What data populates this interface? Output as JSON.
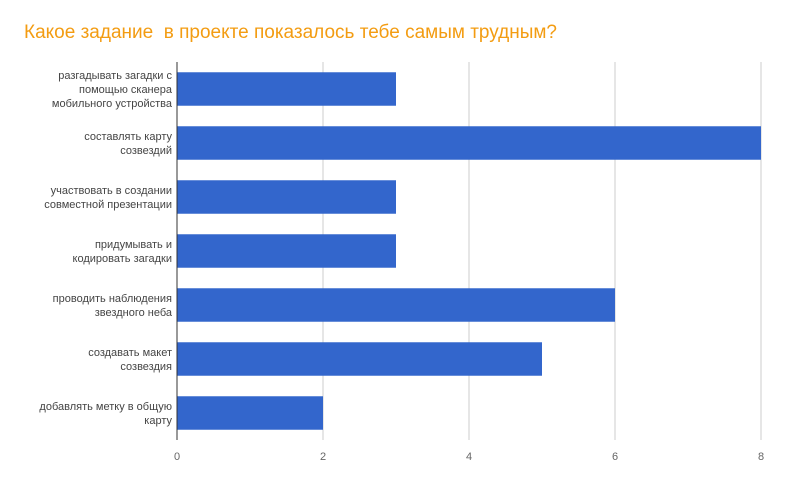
{
  "chart_data": {
    "type": "bar",
    "orientation": "horizontal",
    "title": "Какое задание  в проекте показалось тебе самым трудным?",
    "categories": [
      [
        "разгадывать загадки с",
        "помощью сканера",
        "мобильного устройства"
      ],
      [
        "составлять карту",
        "созвездий"
      ],
      [
        "участвовать в создании",
        "совместной презентации"
      ],
      [
        "придумывать и",
        "кодировать загадки"
      ],
      [
        "проводить наблюдения",
        "звездного неба"
      ],
      [
        "создавать макет",
        "созвездия"
      ],
      [
        "добавлять метку в общую",
        "карту"
      ]
    ],
    "values": [
      3,
      8,
      3,
      3,
      6,
      5,
      2
    ],
    "xlim": [
      0,
      8
    ],
    "xticks": [
      "0",
      "2",
      "4",
      "6",
      "8"
    ],
    "grid": true,
    "bar_color": "#3366cc",
    "title_color": "#f39c12"
  }
}
